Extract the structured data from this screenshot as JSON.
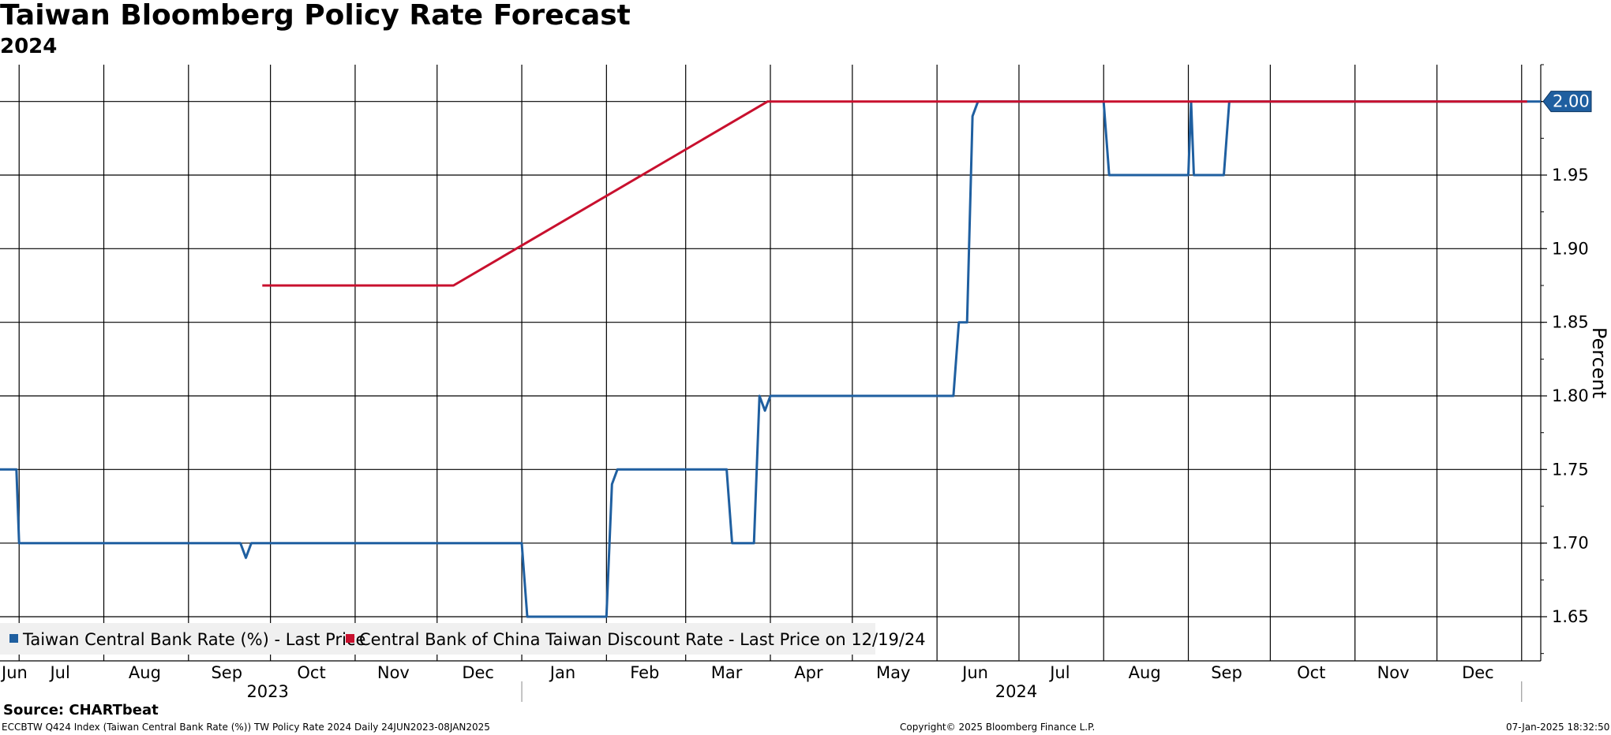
{
  "header": {
    "title": "Taiwan Bloomberg Policy Rate Forecast",
    "subtitle": "2024"
  },
  "chart_data": {
    "type": "line",
    "x_range": [
      "2023-06-24",
      "2025-01-08"
    ],
    "ylim": [
      1.62,
      2.025
    ],
    "ylabel": "Percent",
    "yaxis_position": "right",
    "yticks": [
      1.65,
      1.7,
      1.75,
      1.8,
      1.85,
      1.9,
      1.95,
      2.0
    ],
    "ytick_labels": [
      "1.65",
      "1.70",
      "1.75",
      "1.80",
      "1.85",
      "1.90",
      "1.95",
      "2.00"
    ],
    "grid": true,
    "month_ticks": [
      {
        "label": "Jun",
        "date": "2023-06-15"
      },
      {
        "label": "Jul",
        "date": "2023-07-16"
      },
      {
        "label": "Aug",
        "date": "2023-08-16"
      },
      {
        "label": "Sep",
        "date": "2023-09-15"
      },
      {
        "label": "Oct",
        "date": "2023-10-16"
      },
      {
        "label": "Nov",
        "date": "2023-11-15"
      },
      {
        "label": "Dec",
        "date": "2023-12-16"
      },
      {
        "label": "Jan",
        "date": "2024-01-16"
      },
      {
        "label": "Feb",
        "date": "2024-02-15"
      },
      {
        "label": "Mar",
        "date": "2024-03-16"
      },
      {
        "label": "Apr",
        "date": "2024-04-15"
      },
      {
        "label": "May",
        "date": "2024-05-16"
      },
      {
        "label": "Jun",
        "date": "2024-06-15"
      },
      {
        "label": "Jul",
        "date": "2024-07-16"
      },
      {
        "label": "Aug",
        "date": "2024-08-16"
      },
      {
        "label": "Sep",
        "date": "2024-09-15"
      },
      {
        "label": "Oct",
        "date": "2024-10-16"
      },
      {
        "label": "Nov",
        "date": "2024-11-15"
      },
      {
        "label": "Dec",
        "date": "2024-12-16"
      }
    ],
    "month_grid_dates": [
      "2023-07-01",
      "2023-08-01",
      "2023-09-01",
      "2023-10-01",
      "2023-11-01",
      "2023-12-01",
      "2024-01-01",
      "2024-02-01",
      "2024-03-01",
      "2024-04-01",
      "2024-05-01",
      "2024-06-01",
      "2024-07-01",
      "2024-08-01",
      "2024-09-01",
      "2024-10-01",
      "2024-11-01",
      "2024-12-01",
      "2025-01-01"
    ],
    "year_labels": [
      {
        "label": "2023",
        "date": "2023-09-30"
      },
      {
        "label": "2024",
        "date": "2024-06-30"
      }
    ],
    "year_dividers": [
      "2024-01-01",
      "2025-01-01"
    ],
    "legend_position": "bottom-left",
    "series": [
      {
        "name": "Taiwan Central Bank Rate (%) - Last Price",
        "color": "#1f5fa0",
        "points": [
          [
            "2023-06-24",
            1.75
          ],
          [
            "2023-06-30",
            1.75
          ],
          [
            "2023-07-01",
            1.7
          ],
          [
            "2023-09-20",
            1.7
          ],
          [
            "2023-09-22",
            1.69
          ],
          [
            "2023-09-24",
            1.7
          ],
          [
            "2024-01-01",
            1.7
          ],
          [
            "2024-01-03",
            1.65
          ],
          [
            "2024-02-01",
            1.65
          ],
          [
            "2024-02-03",
            1.74
          ],
          [
            "2024-02-05",
            1.75
          ],
          [
            "2024-03-16",
            1.75
          ],
          [
            "2024-03-18",
            1.7
          ],
          [
            "2024-03-26",
            1.7
          ],
          [
            "2024-03-28",
            1.8
          ],
          [
            "2024-03-30",
            1.79
          ],
          [
            "2024-04-01",
            1.8
          ],
          [
            "2024-06-07",
            1.8
          ],
          [
            "2024-06-09",
            1.85
          ],
          [
            "2024-06-12",
            1.85
          ],
          [
            "2024-06-14",
            1.99
          ],
          [
            "2024-06-16",
            2.0
          ],
          [
            "2024-08-01",
            2.0
          ],
          [
            "2024-08-03",
            1.95
          ],
          [
            "2024-09-01",
            1.95
          ],
          [
            "2024-09-02",
            2.0
          ],
          [
            "2024-09-03",
            1.95
          ],
          [
            "2024-09-14",
            1.95
          ],
          [
            "2024-09-16",
            2.0
          ],
          [
            "2025-01-08",
            2.0
          ]
        ]
      },
      {
        "name": "Central Bank of China Taiwan Discount Rate - Last Price on 12/19/24",
        "color": "#c8102e",
        "points": [
          [
            "2023-09-28",
            1.875
          ],
          [
            "2023-12-07",
            1.875
          ],
          [
            "2024-03-31",
            2.0
          ],
          [
            "2025-01-03",
            2.0
          ]
        ]
      }
    ],
    "last_value_label": {
      "text": "2.00",
      "value": 2.0,
      "color": "#1f5fa0"
    }
  },
  "footer": {
    "source": "Source: CHARTbeat",
    "left": "ECCBTW Q424 Index (Taiwan Central Bank Rate (%)) TW Policy Rate 2024  Daily 24JUN2023-08JAN2025",
    "center": "Copyright© 2025 Bloomberg Finance L.P.",
    "right": "07-Jan-2025 18:32:50"
  }
}
